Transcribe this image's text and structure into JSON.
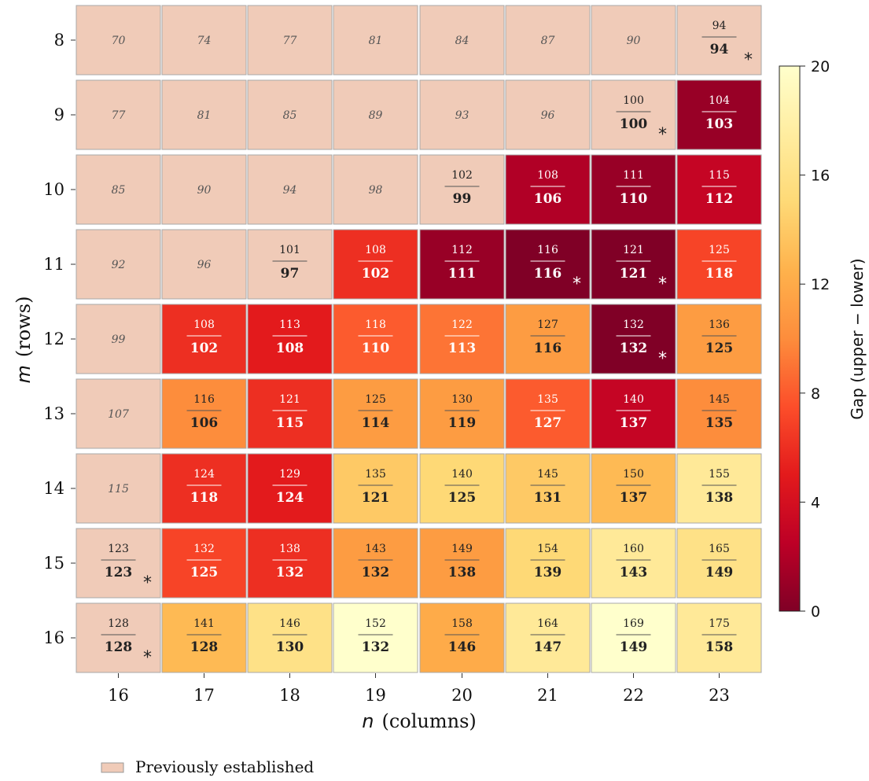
{
  "chart_data": {
    "type": "heatmap",
    "xlabel_var": "n",
    "xlabel_rest": "(columns)",
    "ylabel_var": "m",
    "ylabel_rest": "(rows)",
    "columns": [
      "16",
      "17",
      "18",
      "19",
      "20",
      "21",
      "22",
      "23"
    ],
    "rows": [
      "8",
      "9",
      "10",
      "11",
      "12",
      "13",
      "14",
      "15",
      "16"
    ],
    "cells": [
      [
        {
          "lower": 70,
          "prev": true
        },
        {
          "lower": 74,
          "prev": true
        },
        {
          "lower": 77,
          "prev": true
        },
        {
          "lower": 81,
          "prev": true
        },
        {
          "lower": 84,
          "prev": true
        },
        {
          "lower": 87,
          "prev": true
        },
        {
          "lower": 90,
          "prev": true
        },
        {
          "upper": 94,
          "lower": 94,
          "prev": true,
          "star": true
        }
      ],
      [
        {
          "lower": 77,
          "prev": true
        },
        {
          "lower": 81,
          "prev": true
        },
        {
          "lower": 85,
          "prev": true
        },
        {
          "lower": 89,
          "prev": true
        },
        {
          "lower": 93,
          "prev": true
        },
        {
          "lower": 96,
          "prev": true
        },
        {
          "upper": 100,
          "lower": 100,
          "prev": true,
          "star": true
        },
        {
          "upper": 104,
          "lower": 103
        }
      ],
      [
        {
          "lower": 85,
          "prev": true
        },
        {
          "lower": 90,
          "prev": true
        },
        {
          "lower": 94,
          "prev": true
        },
        {
          "lower": 98,
          "prev": true
        },
        {
          "upper": 102,
          "lower": 99,
          "prev": true
        },
        {
          "upper": 108,
          "lower": 106
        },
        {
          "upper": 111,
          "lower": 110
        },
        {
          "upper": 115,
          "lower": 112
        }
      ],
      [
        {
          "lower": 92,
          "prev": true
        },
        {
          "lower": 96,
          "prev": true
        },
        {
          "upper": 101,
          "lower": 97,
          "prev": true
        },
        {
          "upper": 108,
          "lower": 102
        },
        {
          "upper": 112,
          "lower": 111
        },
        {
          "upper": 116,
          "lower": 116,
          "star": true
        },
        {
          "upper": 121,
          "lower": 121,
          "star": true
        },
        {
          "upper": 125,
          "lower": 118
        }
      ],
      [
        {
          "lower": 99,
          "prev": true
        },
        {
          "upper": 108,
          "lower": 102
        },
        {
          "upper": 113,
          "lower": 108
        },
        {
          "upper": 118,
          "lower": 110
        },
        {
          "upper": 122,
          "lower": 113
        },
        {
          "upper": 127,
          "lower": 116
        },
        {
          "upper": 132,
          "lower": 132,
          "star": true
        },
        {
          "upper": 136,
          "lower": 125
        }
      ],
      [
        {
          "lower": 107,
          "prev": true
        },
        {
          "upper": 116,
          "lower": 106
        },
        {
          "upper": 121,
          "lower": 115
        },
        {
          "upper": 125,
          "lower": 114
        },
        {
          "upper": 130,
          "lower": 119
        },
        {
          "upper": 135,
          "lower": 127
        },
        {
          "upper": 140,
          "lower": 137
        },
        {
          "upper": 145,
          "lower": 135
        }
      ],
      [
        {
          "lower": 115,
          "prev": true
        },
        {
          "upper": 124,
          "lower": 118
        },
        {
          "upper": 129,
          "lower": 124
        },
        {
          "upper": 135,
          "lower": 121
        },
        {
          "upper": 140,
          "lower": 125
        },
        {
          "upper": 145,
          "lower": 131
        },
        {
          "upper": 150,
          "lower": 137
        },
        {
          "upper": 155,
          "lower": 138
        }
      ],
      [
        {
          "upper": 123,
          "lower": 123,
          "prev": true,
          "star": true
        },
        {
          "upper": 132,
          "lower": 125
        },
        {
          "upper": 138,
          "lower": 132
        },
        {
          "upper": 143,
          "lower": 132
        },
        {
          "upper": 149,
          "lower": 138
        },
        {
          "upper": 154,
          "lower": 139
        },
        {
          "upper": 160,
          "lower": 143
        },
        {
          "upper": 165,
          "lower": 149
        }
      ],
      [
        {
          "upper": 128,
          "lower": 128,
          "prev": true,
          "star": true
        },
        {
          "upper": 141,
          "lower": 128
        },
        {
          "upper": 146,
          "lower": 130
        },
        {
          "upper": 152,
          "lower": 132
        },
        {
          "upper": 158,
          "lower": 146
        },
        {
          "upper": 164,
          "lower": 147
        },
        {
          "upper": 169,
          "lower": 149
        },
        {
          "upper": 175,
          "lower": 158
        }
      ]
    ],
    "star_symbol": "*",
    "colorbar": {
      "label": "Gap  (upper − lower)",
      "min": 0,
      "max": 20,
      "ticks": [
        "0",
        "4",
        "8",
        "12",
        "16",
        "20"
      ],
      "colormap": "YlOrRd_r",
      "stops": [
        "#800026",
        "#bd0026",
        "#e31a1c",
        "#fc4e2a",
        "#fd8d3c",
        "#feb24c",
        "#fed976",
        "#ffeda0",
        "#ffffcc"
      ]
    },
    "legend": {
      "label": "Previously established",
      "placement": "bottom-left",
      "color": "#f0cbb8"
    },
    "previously_established_color": "#f0cbb8"
  }
}
